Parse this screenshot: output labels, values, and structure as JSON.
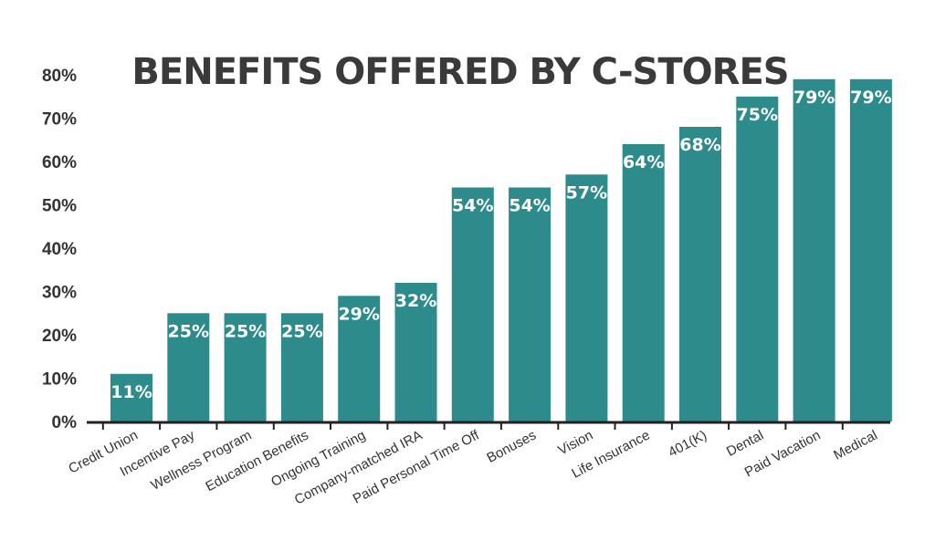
{
  "chart_data": {
    "type": "bar",
    "title": "BENEFITS OFFERED BY C-STORES",
    "xlabel": "",
    "ylabel": "",
    "ylim": [
      0,
      80
    ],
    "yticks": [
      "0%",
      "10%",
      "20%",
      "30%",
      "40%",
      "50%",
      "60%",
      "70%",
      "80%"
    ],
    "grid": false,
    "legend": "none",
    "bar_color": "#2e8b8b",
    "categories": [
      "Credit Union",
      "Incentive Pay",
      "Wellness Program",
      "Education Benefits",
      "Ongoing Training",
      "Company-matched IRA",
      "Paid Personal Time Off",
      "Bonuses",
      "Vision",
      "Life Insurance",
      "401(K)",
      "Dental",
      "Paid Vacation",
      "Medical"
    ],
    "values": [
      11,
      25,
      25,
      25,
      29,
      32,
      54,
      54,
      57,
      64,
      68,
      75,
      79,
      79
    ],
    "data_labels": [
      "11%",
      "25%",
      "25%",
      "25%",
      "29%",
      "32%",
      "54%",
      "54%",
      "57%",
      "64%",
      "68%",
      "75%",
      "79%",
      "79%"
    ]
  }
}
